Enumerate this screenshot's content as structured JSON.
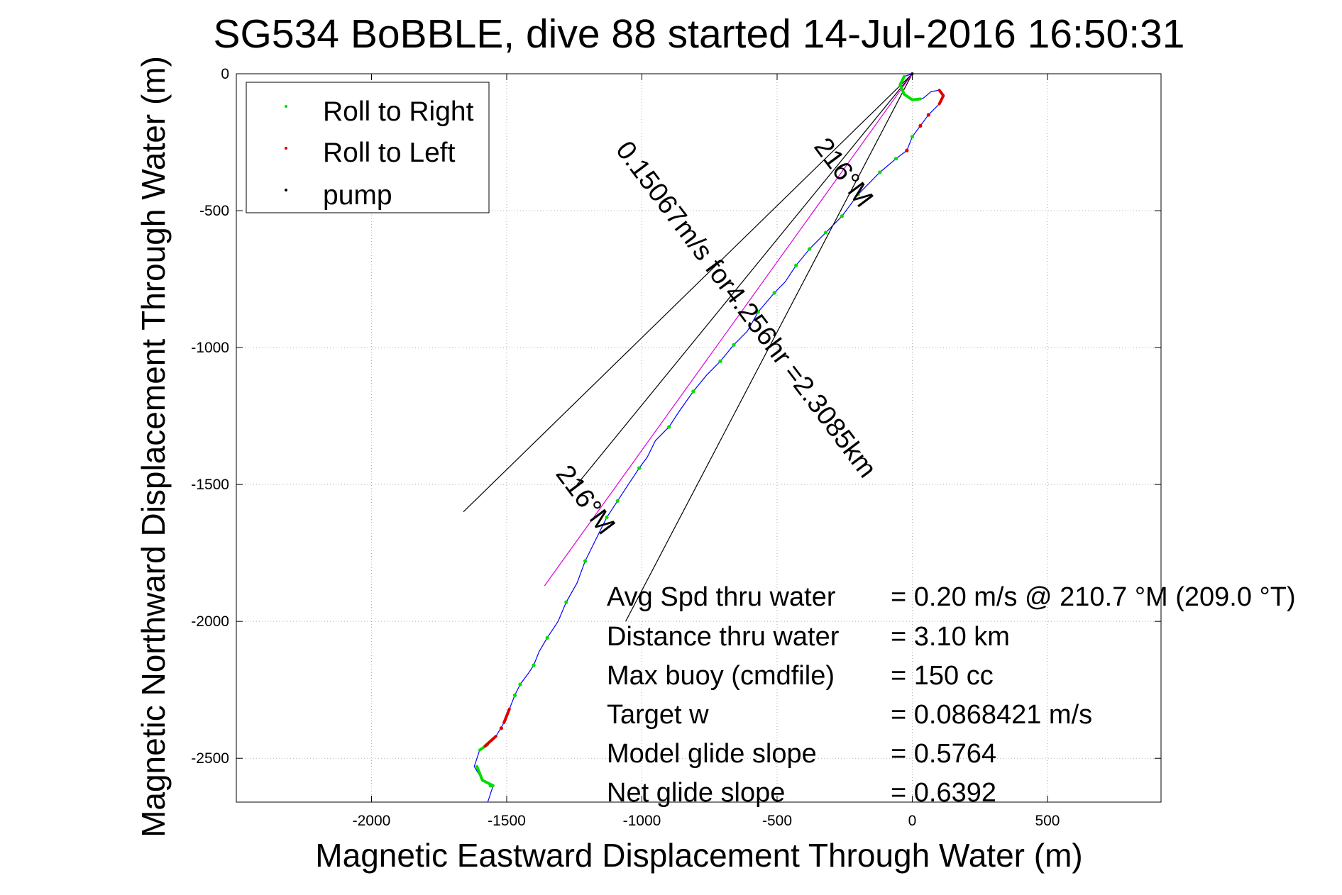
{
  "chart_data": {
    "type": "line",
    "title": "SG534 BoBBLE, dive 88 started 14-Jul-2016 16:50:31",
    "xlabel": "Magnetic Eastward Displacement Through Water (m)",
    "ylabel": "Magnetic Northward Displacement Through Water (m)",
    "xlim": [
      -2500,
      920
    ],
    "ylim": [
      -2660,
      0
    ],
    "xticks": [
      -2000,
      -1500,
      -1000,
      -500,
      0,
      500
    ],
    "xtick_labels": [
      "-2000",
      "-1500",
      "-1000",
      "-500",
      "0",
      "500"
    ],
    "yticks": [
      0,
      -500,
      -1000,
      -1500,
      -2000,
      -2500
    ],
    "ytick_labels": [
      "0",
      "-500",
      "-1000",
      "-1500",
      "-2000",
      "-2500"
    ],
    "grid": true,
    "legend_position": "top-left",
    "legend": [
      {
        "label": "Roll to Right",
        "color": "#00dd00"
      },
      {
        "label": "Roll to Left",
        "color": "#dd0000"
      },
      {
        "label": "pump",
        "color": "#000000"
      }
    ],
    "track": {
      "color": "#0000ff",
      "points": [
        [
          0,
          0
        ],
        [
          -30,
          -10
        ],
        [
          -45,
          -40
        ],
        [
          -30,
          -75
        ],
        [
          0,
          -95
        ],
        [
          40,
          -90
        ],
        [
          70,
          -65
        ],
        [
          100,
          -60
        ],
        [
          115,
          -80
        ],
        [
          100,
          -110
        ],
        [
          60,
          -150
        ],
        [
          30,
          -190
        ],
        [
          0,
          -230
        ],
        [
          -20,
          -280
        ],
        [
          -60,
          -310
        ],
        [
          -120,
          -360
        ],
        [
          -200,
          -440
        ],
        [
          -260,
          -520
        ],
        [
          -320,
          -580
        ],
        [
          -380,
          -640
        ],
        [
          -430,
          -700
        ],
        [
          -470,
          -760
        ],
        [
          -510,
          -800
        ],
        [
          -570,
          -870
        ],
        [
          -610,
          -940
        ],
        [
          -660,
          -990
        ],
        [
          -710,
          -1050
        ],
        [
          -760,
          -1100
        ],
        [
          -810,
          -1160
        ],
        [
          -860,
          -1230
        ],
        [
          -900,
          -1290
        ],
        [
          -950,
          -1340
        ],
        [
          -980,
          -1400
        ],
        [
          -1010,
          -1440
        ],
        [
          -1050,
          -1500
        ],
        [
          -1090,
          -1560
        ],
        [
          -1130,
          -1620
        ],
        [
          -1170,
          -1700
        ],
        [
          -1210,
          -1780
        ],
        [
          -1240,
          -1860
        ],
        [
          -1280,
          -1930
        ],
        [
          -1310,
          -2000
        ],
        [
          -1350,
          -2060
        ],
        [
          -1380,
          -2110
        ],
        [
          -1400,
          -2160
        ],
        [
          -1420,
          -2190
        ],
        [
          -1450,
          -2230
        ],
        [
          -1470,
          -2270
        ],
        [
          -1490,
          -2320
        ],
        [
          -1510,
          -2370
        ],
        [
          -1540,
          -2420
        ],
        [
          -1570,
          -2450
        ],
        [
          -1600,
          -2470
        ],
        [
          -1620,
          -2530
        ],
        [
          -1590,
          -2580
        ],
        [
          -1550,
          -2600
        ],
        [
          -1570,
          -2660
        ]
      ]
    },
    "roll_right_segments": [
      [
        [
          -30,
          -10
        ],
        [
          -45,
          -40
        ],
        [
          -30,
          -75
        ],
        [
          0,
          -95
        ],
        [
          30,
          -92
        ]
      ],
      [
        [
          -1610,
          -2530
        ],
        [
          -1590,
          -2580
        ],
        [
          -1550,
          -2600
        ]
      ],
      [
        [
          -1570,
          -2450
        ],
        [
          -1600,
          -2470
        ]
      ]
    ],
    "roll_left_segments": [
      [
        [
          100,
          -60
        ],
        [
          115,
          -80
        ],
        [
          100,
          -110
        ]
      ],
      [
        [
          -1540,
          -2420
        ],
        [
          -1580,
          -2455
        ]
      ],
      [
        [
          -1490,
          -2320
        ],
        [
          -1510,
          -2370
        ]
      ]
    ],
    "roll_right_points": [
      [
        0,
        -230
      ],
      [
        -60,
        -310
      ],
      [
        -120,
        -360
      ],
      [
        -200,
        -440
      ],
      [
        -260,
        -520
      ],
      [
        -320,
        -580
      ],
      [
        -380,
        -640
      ],
      [
        -430,
        -700
      ],
      [
        -510,
        -800
      ],
      [
        -570,
        -870
      ],
      [
        -660,
        -990
      ],
      [
        -710,
        -1050
      ],
      [
        -810,
        -1160
      ],
      [
        -900,
        -1290
      ],
      [
        -1010,
        -1440
      ],
      [
        -1090,
        -1560
      ],
      [
        -1130,
        -1620
      ],
      [
        -1210,
        -1780
      ],
      [
        -1280,
        -1930
      ],
      [
        -1350,
        -2060
      ],
      [
        -1400,
        -2160
      ],
      [
        -1450,
        -2230
      ],
      [
        -1470,
        -2270
      ],
      [
        -1560,
        -2600
      ]
    ],
    "roll_left_points": [
      [
        30,
        -190
      ],
      [
        60,
        -150
      ],
      [
        -20,
        -280
      ],
      [
        -1520,
        -2390
      ]
    ],
    "pump_points": [
      [
        0,
        0
      ]
    ],
    "reference_lines": [
      {
        "color": "#000000",
        "points": [
          [
            0,
            0
          ],
          [
            -1660,
            -1600
          ]
        ]
      },
      {
        "color": "#000000",
        "points": [
          [
            0,
            0
          ],
          [
            -1060,
            -2000
          ]
        ]
      },
      {
        "color": "#000000",
        "points": [
          [
            0,
            0
          ],
          [
            -1240,
            -1500
          ]
        ]
      },
      {
        "color": "#dd00dd",
        "points": [
          [
            0,
            0
          ],
          [
            -1360,
            -1870
          ]
        ]
      }
    ],
    "annotations": [
      {
        "text": "216°M",
        "at": [
          -1235,
          -1575
        ],
        "angle": 53
      },
      {
        "text": "0.15067m/s for4.256hr =2.3085km",
        "at": [
          -640,
          -880
        ],
        "angle": 53
      },
      {
        "text": "216°M",
        "at": [
          -280,
          -380
        ],
        "angle": 53
      }
    ],
    "stats": [
      {
        "label": "Avg Spd thru water",
        "value": "=  0.20 m/s @ 210.7 °M (209.0 °T)"
      },
      {
        "label": "Distance thru water",
        "value": "=  3.10 km"
      },
      {
        "label": "Max buoy (cmdfile)",
        "value": "= 150 cc"
      },
      {
        "label": "Target w",
        "value": "= 0.0868421 m/s"
      },
      {
        "label": "Model glide slope",
        "value": "= 0.5764"
      },
      {
        "label": "Net glide slope",
        "value": "= 0.6392"
      }
    ]
  }
}
